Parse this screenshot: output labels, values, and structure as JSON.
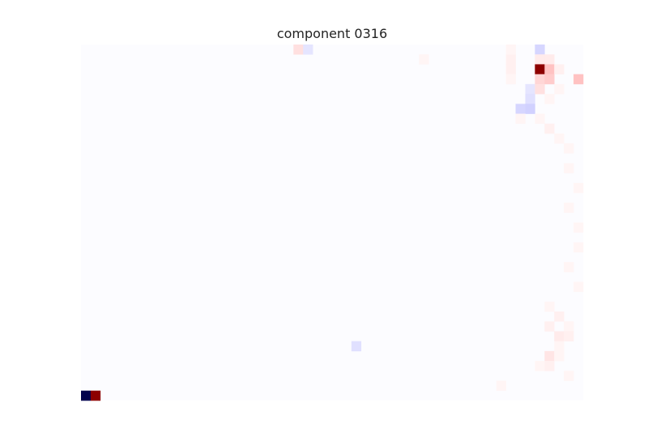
{
  "chart_data": {
    "type": "heatmap",
    "title": "component 0316",
    "rows": 36,
    "cols": 52,
    "colormap": "seismic",
    "vmin": -1,
    "vmax": 1,
    "background_value": 0.005,
    "cells": [
      {
        "r": 0,
        "c": 22,
        "v": 0.06
      },
      {
        "r": 0,
        "c": 23,
        "v": -0.05
      },
      {
        "r": 0,
        "c": 44,
        "v": 0.02
      },
      {
        "r": 0,
        "c": 47,
        "v": -0.08
      },
      {
        "r": 1,
        "c": 35,
        "v": 0.02
      },
      {
        "r": 1,
        "c": 44,
        "v": 0.03
      },
      {
        "r": 1,
        "c": 47,
        "v": 0.04
      },
      {
        "r": 1,
        "c": 48,
        "v": 0.04
      },
      {
        "r": 2,
        "c": 44,
        "v": 0.03
      },
      {
        "r": 2,
        "c": 47,
        "v": 0.95
      },
      {
        "r": 2,
        "c": 48,
        "v": 0.12
      },
      {
        "r": 2,
        "c": 49,
        "v": 0.03
      },
      {
        "r": 3,
        "c": 44,
        "v": 0.02
      },
      {
        "r": 3,
        "c": 47,
        "v": 0.08
      },
      {
        "r": 3,
        "c": 48,
        "v": 0.1
      },
      {
        "r": 3,
        "c": 51,
        "v": 0.12
      },
      {
        "r": 4,
        "c": 46,
        "v": -0.05
      },
      {
        "r": 4,
        "c": 47,
        "v": 0.06
      },
      {
        "r": 4,
        "c": 49,
        "v": 0.02
      },
      {
        "r": 5,
        "c": 46,
        "v": -0.06
      },
      {
        "r": 5,
        "c": 48,
        "v": 0.02
      },
      {
        "r": 6,
        "c": 45,
        "v": -0.08
      },
      {
        "r": 6,
        "c": 46,
        "v": -0.09
      },
      {
        "r": 7,
        "c": 45,
        "v": 0.02
      },
      {
        "r": 7,
        "c": 47,
        "v": 0.02
      },
      {
        "r": 8,
        "c": 48,
        "v": 0.03
      },
      {
        "r": 9,
        "c": 49,
        "v": 0.02
      },
      {
        "r": 10,
        "c": 50,
        "v": 0.02
      },
      {
        "r": 12,
        "c": 50,
        "v": 0.02
      },
      {
        "r": 14,
        "c": 51,
        "v": 0.02
      },
      {
        "r": 16,
        "c": 50,
        "v": 0.02
      },
      {
        "r": 18,
        "c": 51,
        "v": 0.02
      },
      {
        "r": 20,
        "c": 51,
        "v": 0.02
      },
      {
        "r": 22,
        "c": 50,
        "v": 0.02
      },
      {
        "r": 24,
        "c": 51,
        "v": 0.02
      },
      {
        "r": 26,
        "c": 48,
        "v": 0.02
      },
      {
        "r": 27,
        "c": 49,
        "v": 0.03
      },
      {
        "r": 28,
        "c": 48,
        "v": 0.03
      },
      {
        "r": 28,
        "c": 50,
        "v": 0.02
      },
      {
        "r": 29,
        "c": 49,
        "v": 0.04
      },
      {
        "r": 29,
        "c": 50,
        "v": 0.03
      },
      {
        "r": 30,
        "c": 28,
        "v": -0.06
      },
      {
        "r": 30,
        "c": 49,
        "v": 0.02
      },
      {
        "r": 31,
        "c": 48,
        "v": 0.05
      },
      {
        "r": 31,
        "c": 49,
        "v": 0.02
      },
      {
        "r": 32,
        "c": 47,
        "v": 0.02
      },
      {
        "r": 32,
        "c": 48,
        "v": 0.03
      },
      {
        "r": 33,
        "c": 50,
        "v": 0.02
      },
      {
        "r": 34,
        "c": 43,
        "v": 0.02
      },
      {
        "r": 35,
        "c": 0,
        "v": -1.0
      },
      {
        "r": 35,
        "c": 1,
        "v": 0.95
      }
    ]
  }
}
